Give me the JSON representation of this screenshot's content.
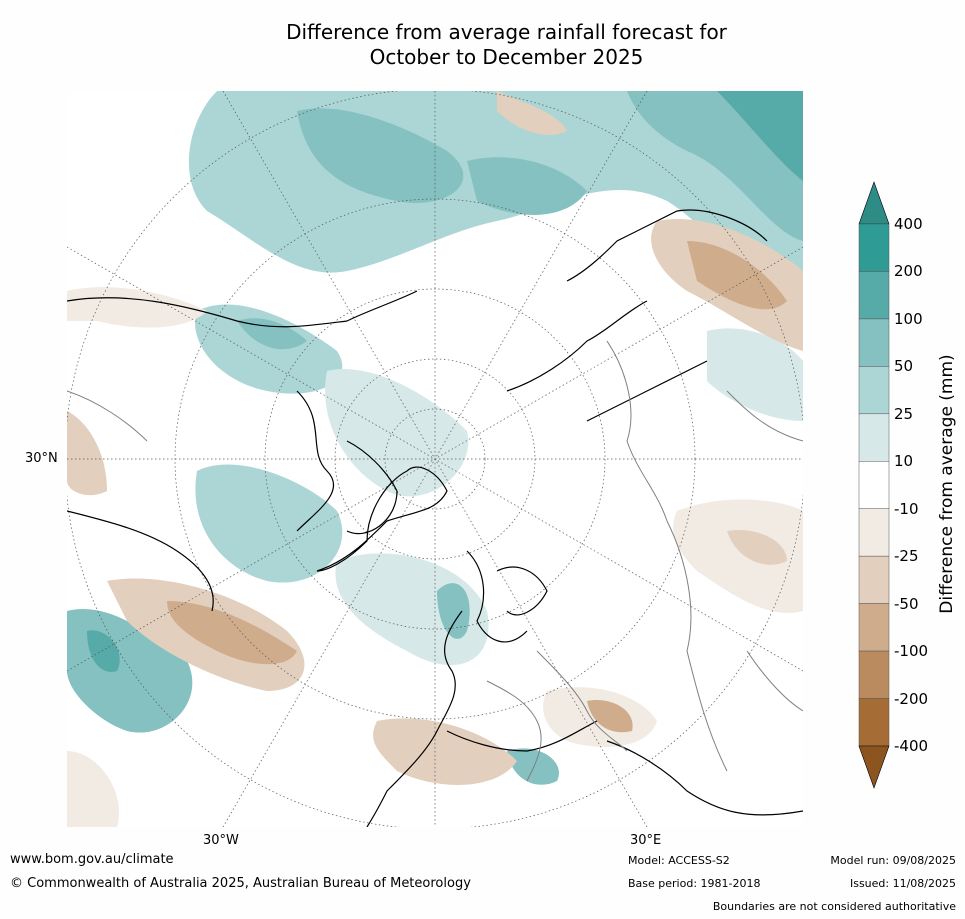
{
  "title": {
    "line1": "Difference from average rainfall forecast for",
    "line2": "October to December 2025"
  },
  "map": {
    "projection": "north polar stereographic",
    "lat_label": "30°N",
    "lon_labels": [
      "30°W",
      "30°E"
    ],
    "colors": {
      "ocean_wet": "#86c3c0",
      "land_line": "#000000",
      "border_line": "#808080"
    }
  },
  "colorbar": {
    "title": "Difference from average (mm)",
    "ticks": [
      "400",
      "200",
      "100",
      "50",
      "25",
      "10",
      "-10",
      "-25",
      "-50",
      "-100",
      "-200",
      "-400"
    ],
    "colors": [
      "#2e8c86",
      "#2f9b95",
      "#56aaa8",
      "#84c1c0",
      "#acd6d5",
      "#d6e9e8",
      "#ffffff",
      "#f1ebe4",
      "#e3cfbe",
      "#cfac8c",
      "#bb8b60",
      "#a66c35",
      "#8c5520"
    ]
  },
  "footer": {
    "url": "www.bom.gov.au/climate",
    "copyright": "© Commonwealth of Australia 2025, Australian Bureau of Meteorology",
    "model": "Model: ACCESS-S2",
    "base_period": "Base period: 1981-2018",
    "model_run": "Model run: 09/08/2025",
    "issued": "Issued: 11/08/2025",
    "disclaimer": "Boundaries are not considered authoritative"
  }
}
